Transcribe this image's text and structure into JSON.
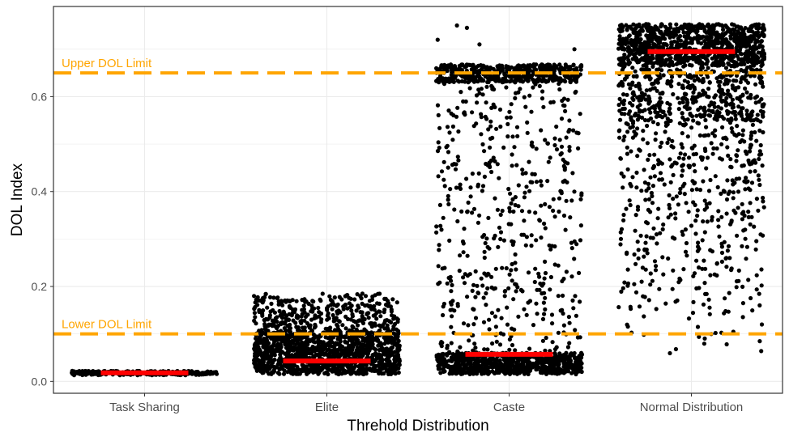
{
  "chart_data": {
    "type": "scatter",
    "title": "",
    "xlabel": "Threhold Distribution",
    "ylabel": "DOL Index",
    "categories": [
      "Task Sharing",
      "Elite",
      "Caste",
      "Normal Distribution"
    ],
    "yticks": [
      "0.0",
      "0.2",
      "0.4",
      "0.6"
    ],
    "ylim": [
      -0.025,
      0.79
    ],
    "grid": true,
    "colors": {
      "points": "#000000",
      "median": "#ff0000",
      "limit": "#ffa500",
      "grid": "#ebebeb",
      "axis_text": "#4d4d4d"
    },
    "reference_lines": [
      {
        "label": "Upper DOL Limit",
        "y": 0.65
      },
      {
        "label": "Lower DOL Limit",
        "y": 0.1
      }
    ],
    "medians": [
      0.018,
      0.043,
      0.057,
      0.695
    ],
    "groups": [
      {
        "category": "Task Sharing",
        "distribution": "tight band",
        "min": 0.013,
        "max": 0.022
      },
      {
        "category": "Elite",
        "distribution": "dense below 0.10, sparser up to 0.18",
        "min": 0.015,
        "max": 0.185
      },
      {
        "category": "Caste",
        "distribution": "dense band 0.015-0.06 and 0.63-0.67, sparse between, few outliers to 0.75",
        "min": 0.015,
        "max": 0.75
      },
      {
        "category": "Normal Distribution",
        "distribution": "dense band 0.66-0.75, sparser down to 0.02",
        "min": 0.015,
        "max": 0.755
      }
    ]
  }
}
